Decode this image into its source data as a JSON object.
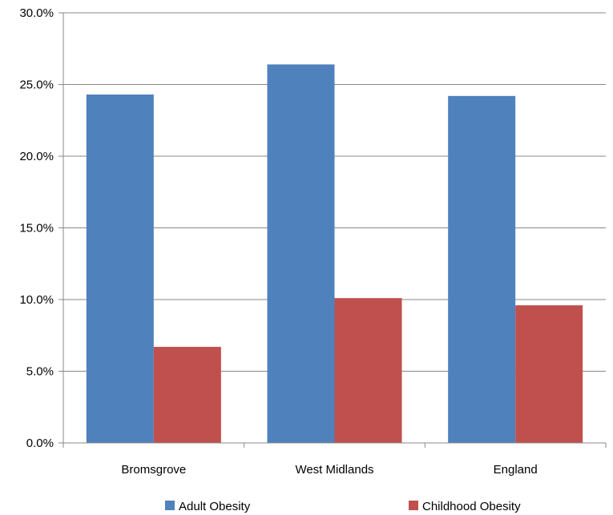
{
  "chart_data": {
    "type": "bar",
    "categories": [
      "Bromsgrove",
      "West Midlands",
      "England"
    ],
    "series": [
      {
        "name": "Adult Obesity",
        "values": [
          24.3,
          26.4,
          24.2
        ],
        "color": "#4F81BD"
      },
      {
        "name": "Childhood Obesity",
        "values": [
          6.7,
          10.1,
          9.6
        ],
        "color": "#C0504D"
      }
    ],
    "yticks": [
      "0.0%",
      "5.0%",
      "10.0%",
      "15.0%",
      "20.0%",
      "25.0%",
      "30.0%"
    ],
    "ylim": [
      0,
      30
    ],
    "grid": true,
    "legend": "bottom"
  }
}
